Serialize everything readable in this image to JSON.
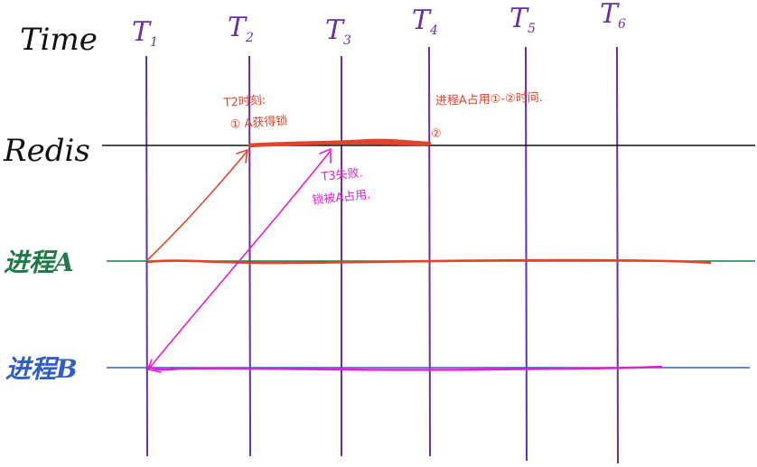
{
  "axis_label": "Time",
  "ticks": [
    {
      "name": "T",
      "sub": "1"
    },
    {
      "name": "T",
      "sub": "2"
    },
    {
      "name": "T",
      "sub": "3"
    },
    {
      "name": "T",
      "sub": "4"
    },
    {
      "name": "T",
      "sub": "5"
    },
    {
      "name": "T",
      "sub": "6"
    }
  ],
  "lanes": {
    "redis": "Redis",
    "process_a": "进程A",
    "process_b": "进程B"
  },
  "annotations": {
    "red_note_line1": "T2时刻:",
    "red_note_line2": "① A获得锁",
    "red_marker": "②",
    "red_note_t4": "进程A占用①-②时间.",
    "magenta_note_line1": "T3失败.",
    "magenta_note_line2": "锁被A占用."
  },
  "colors": {
    "timeline": "#6a2fa3",
    "redis_line": "#111111",
    "process_a_line": "#1e7a47",
    "process_a_text": "#1e7a47",
    "process_b_line": "#2f5fc4",
    "process_b_text": "#2f5fc4",
    "red_ink": "#e0442a",
    "magenta_ink": "#e21fd4"
  }
}
